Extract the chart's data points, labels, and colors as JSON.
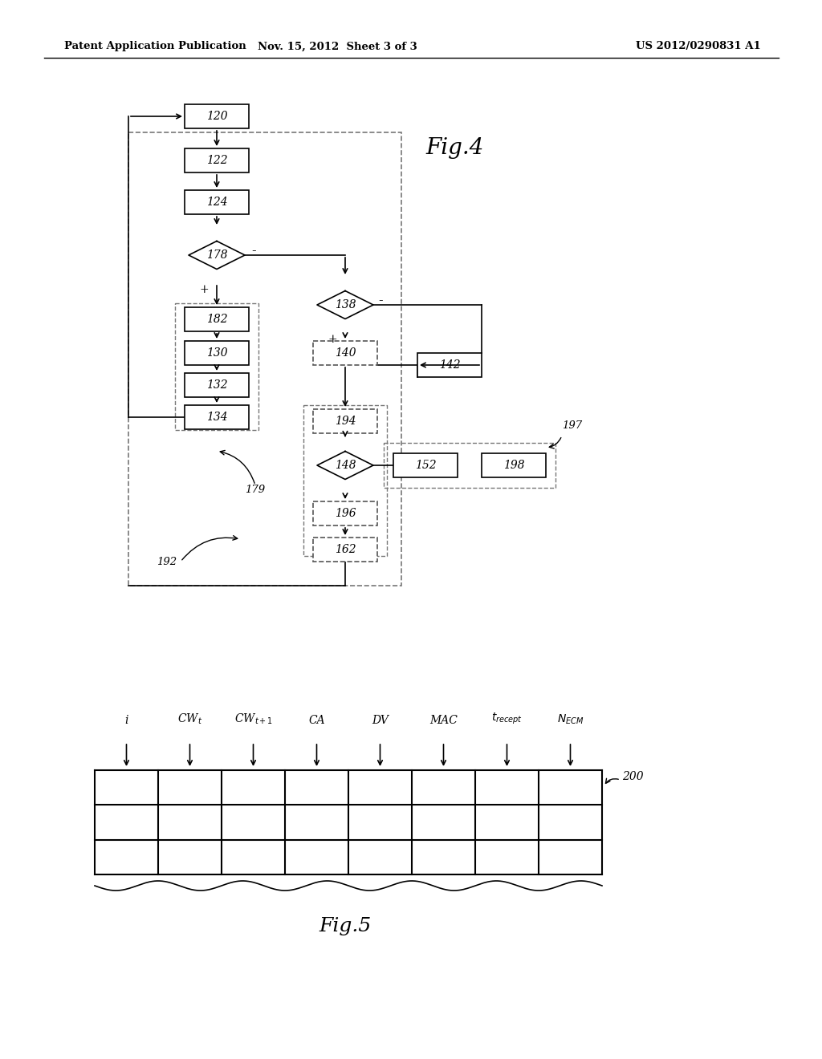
{
  "header_left": "Patent Application Publication",
  "header_mid": "Nov. 15, 2012  Sheet 3 of 3",
  "header_right": "US 2012/0290831 A1",
  "fig4_label": "Fig.4",
  "fig5_label": "Fig.5",
  "background": "#ffffff"
}
